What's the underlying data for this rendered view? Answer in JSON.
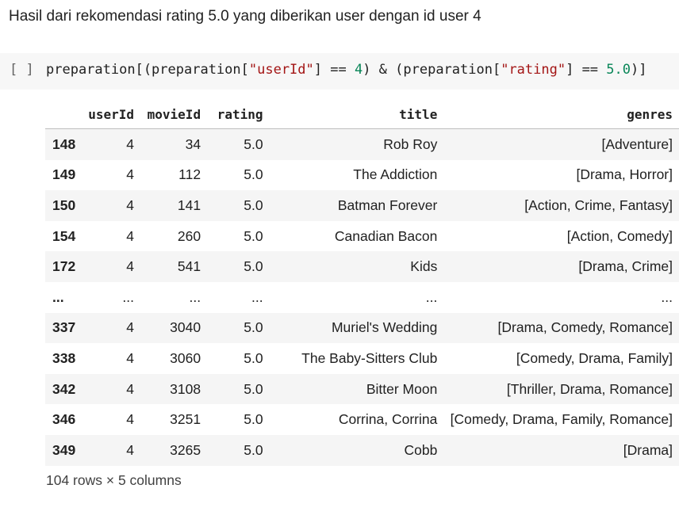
{
  "markdown_text": "Hasil dari rekomendasi rating 5.0 yang diberikan user dengan id user 4",
  "code_cell": {
    "run_brackets": "[ ]",
    "code_parts": {
      "p1": "preparation[(preparation[",
      "s1": "\"userId\"",
      "p2": "] == ",
      "n1": "4",
      "p3": ") & (preparation[",
      "s2": "\"rating\"",
      "p4": "] == ",
      "n2": "5.0",
      "p5": ")]"
    }
  },
  "table": {
    "columns": [
      "userId",
      "movieId",
      "rating",
      "title",
      "genres"
    ],
    "rows": [
      {
        "index": "148",
        "cells": [
          "4",
          "34",
          "5.0",
          "Rob Roy",
          "[Adventure]"
        ]
      },
      {
        "index": "149",
        "cells": [
          "4",
          "112",
          "5.0",
          "The Addiction",
          "[Drama, Horror]"
        ]
      },
      {
        "index": "150",
        "cells": [
          "4",
          "141",
          "5.0",
          "Batman Forever",
          "[Action, Crime, Fantasy]"
        ]
      },
      {
        "index": "154",
        "cells": [
          "4",
          "260",
          "5.0",
          "Canadian Bacon",
          "[Action, Comedy]"
        ]
      },
      {
        "index": "172",
        "cells": [
          "4",
          "541",
          "5.0",
          "Kids",
          "[Drama, Crime]"
        ]
      },
      {
        "index": "...",
        "cells": [
          "...",
          "...",
          "...",
          "...",
          "..."
        ]
      },
      {
        "index": "337",
        "cells": [
          "4",
          "3040",
          "5.0",
          "Muriel's Wedding",
          "[Drama, Comedy, Romance]"
        ]
      },
      {
        "index": "338",
        "cells": [
          "4",
          "3060",
          "5.0",
          "The Baby-Sitters Club",
          "[Comedy, Drama, Family]"
        ]
      },
      {
        "index": "342",
        "cells": [
          "4",
          "3108",
          "5.0",
          "Bitter Moon",
          "[Thriller, Drama, Romance]"
        ]
      },
      {
        "index": "346",
        "cells": [
          "4",
          "3251",
          "5.0",
          "Corrina, Corrina",
          "[Comedy, Drama, Family, Romance]"
        ]
      },
      {
        "index": "349",
        "cells": [
          "4",
          "3265",
          "5.0",
          "Cobb",
          "[Drama]"
        ]
      }
    ]
  },
  "caption": "104 rows × 5 columns"
}
